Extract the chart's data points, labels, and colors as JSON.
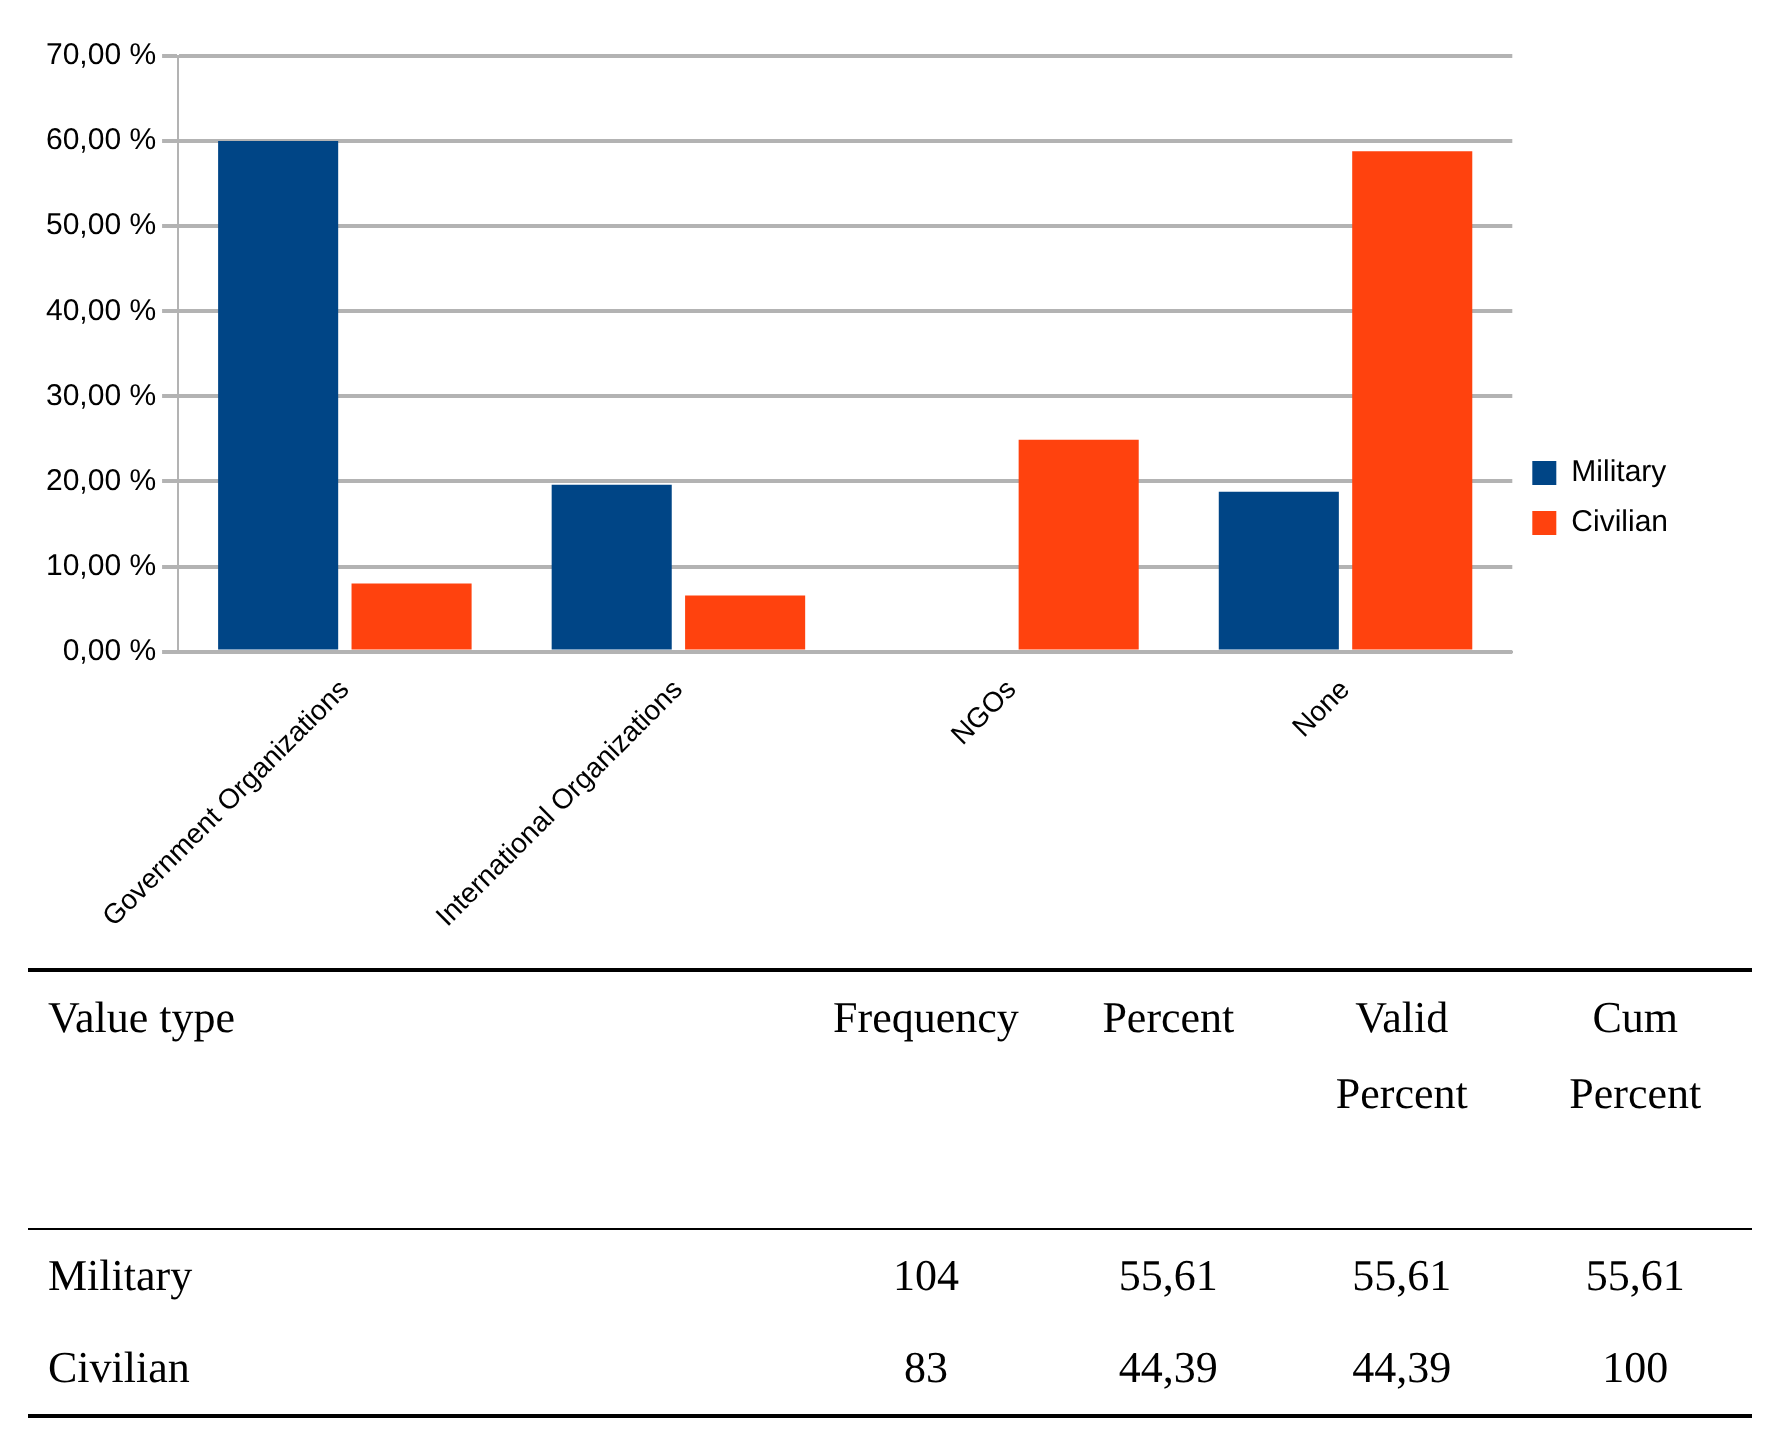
{
  "chart_data": [
    {
      "type": "bar",
      "categories": [
        "Government Organizations",
        "International Organizations",
        "NGOs",
        "None"
      ],
      "series": [
        {
          "name": "Military",
          "color": "#004586",
          "values": [
            60,
            19.6,
            0,
            18.8
          ]
        },
        {
          "name": "Civilian",
          "color": "#ff420e",
          "values": [
            8,
            6.6,
            24.9,
            58.8
          ]
        }
      ],
      "ylim": [
        0,
        70
      ],
      "yticks": [
        {
          "value": 0,
          "label": "0,00 %"
        },
        {
          "value": 10,
          "label": "10,00 %"
        },
        {
          "value": 20,
          "label": "20,00 %"
        },
        {
          "value": 30,
          "label": "30,00 %"
        },
        {
          "value": 40,
          "label": "40,00 %"
        },
        {
          "value": 50,
          "label": "50,00 %"
        },
        {
          "value": 60,
          "label": "60,00 %"
        },
        {
          "value": 70,
          "label": "70,00 %"
        }
      ],
      "grid": "y",
      "legend": "right"
    },
    {
      "type": "other",
      "annotations": [
        "Value type",
        "Frequency",
        "Percent",
        "Valid Percent",
        "Cum Percent",
        "Military",
        "104",
        "55,61",
        "55,61",
        "55,61",
        "Civilian",
        "83",
        "44,39",
        "44,39",
        "100"
      ]
    }
  ]
}
